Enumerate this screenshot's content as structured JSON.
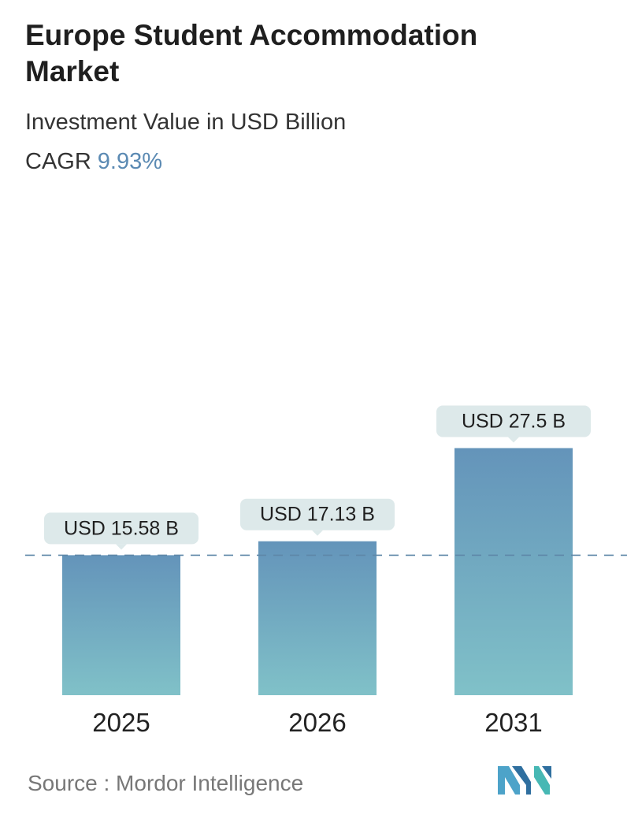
{
  "header": {
    "title": "Europe Student Accommodation Market",
    "subtitle": "Investment Value in USD Billion",
    "cagr_label": "CAGR",
    "cagr_value": "9.93%"
  },
  "footer": {
    "source": "Source :  Mordor Intelligence",
    "logo": "mordor-intelligence-logo"
  },
  "colors": {
    "bar_top": "#6494ba",
    "bar_bottom": "#80c1c8",
    "label_bg": "#dde9ea",
    "cagr": "#5b8ab3",
    "dashed_line": "#5e87a8"
  },
  "chart_data": {
    "type": "bar",
    "categories": [
      "2025",
      "2026",
      "2031"
    ],
    "values": [
      15.58,
      17.13,
      27.5
    ],
    "data_labels": [
      "USD 15.58 B",
      "USD 17.13 B",
      "USD 27.5 B"
    ],
    "title": "Europe Student Accommodation Market",
    "subtitle": "Investment Value in USD Billion",
    "xlabel": "",
    "ylabel": "",
    "reference_line": 15.58,
    "grid": false,
    "legend": "none"
  }
}
